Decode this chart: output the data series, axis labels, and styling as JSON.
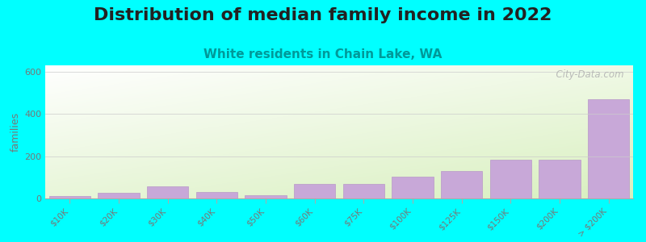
{
  "title": "Distribution of median family income in 2022",
  "subtitle": "White residents in Chain Lake, WA",
  "ylabel": "families",
  "background_color": "#00FFFF",
  "bar_color": "#c8a8d8",
  "bar_edge_color": "#b898c8",
  "categories": [
    "$10K",
    "$20K",
    "$30K",
    "$40K",
    "$50K",
    "$60K",
    "$75K",
    "$100K",
    "$125K",
    "$150K",
    "$200K",
    "> $200K"
  ],
  "values": [
    12,
    25,
    58,
    32,
    15,
    68,
    68,
    105,
    128,
    182,
    182,
    470
  ],
  "yticks": [
    0,
    200,
    400,
    600
  ],
  "ylim": [
    0,
    630
  ],
  "title_fontsize": 16,
  "subtitle_fontsize": 11,
  "title_color": "#222222",
  "subtitle_color": "#009999",
  "watermark": "  City-Data.com",
  "grid_color": "#cccccc",
  "tick_color": "#777777",
  "plot_bg_colors": [
    "#d8eec0",
    "#ffffff"
  ]
}
